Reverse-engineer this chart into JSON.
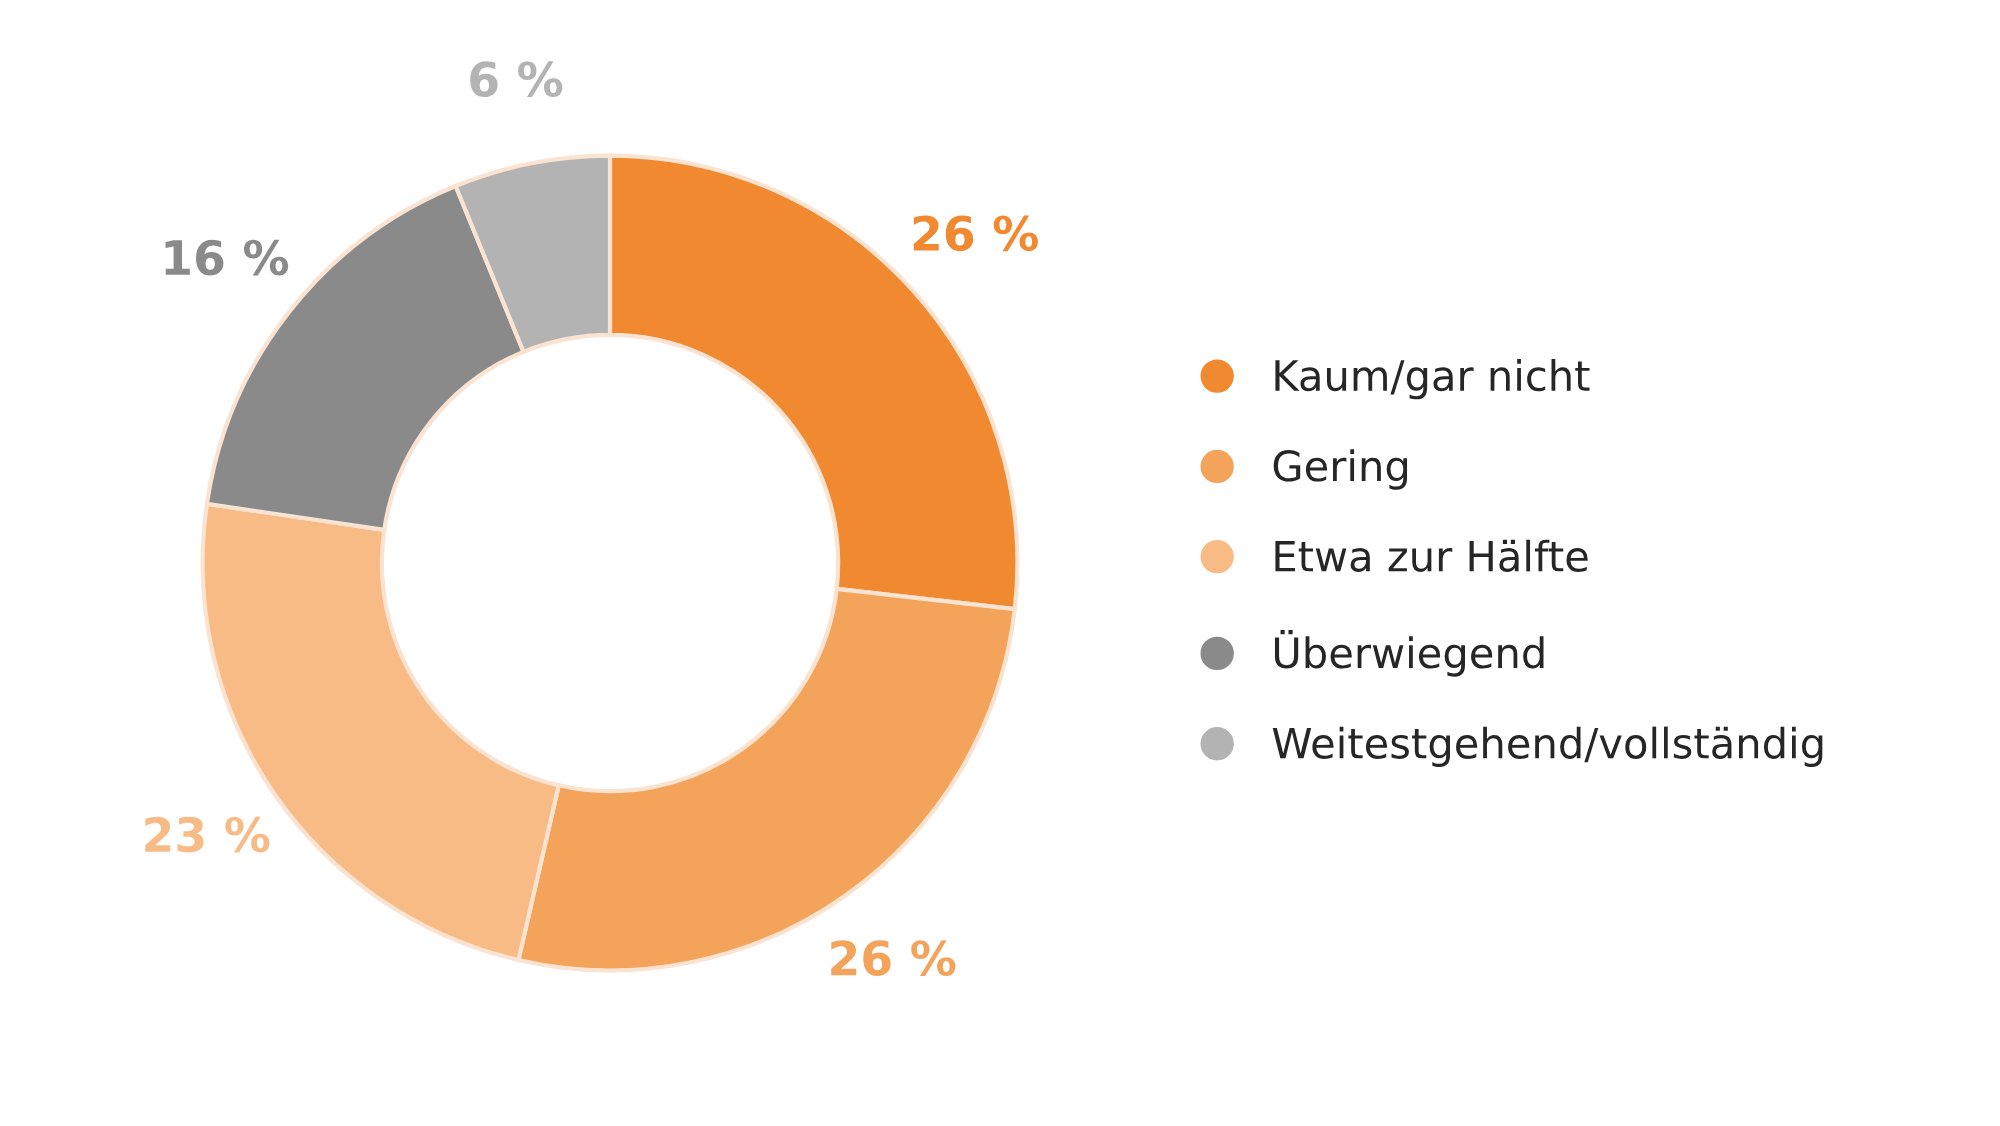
{
  "chart_data": {
    "type": "donut",
    "categories": [
      "Kaum/gar nicht",
      "Gering",
      "Etwa zur Hälfte",
      "Überwiegend",
      "Weitestgehend/vollständig"
    ],
    "values": [
      26,
      26,
      23,
      16,
      6
    ],
    "colors": [
      "#f0892f",
      "#f4a35a",
      "#f8bb85",
      "#8a8a8a",
      "#b3b3b3"
    ],
    "value_labels": [
      "26 %",
      "26 %",
      "23 %",
      "16 %",
      "6 %"
    ],
    "legend": "right"
  }
}
